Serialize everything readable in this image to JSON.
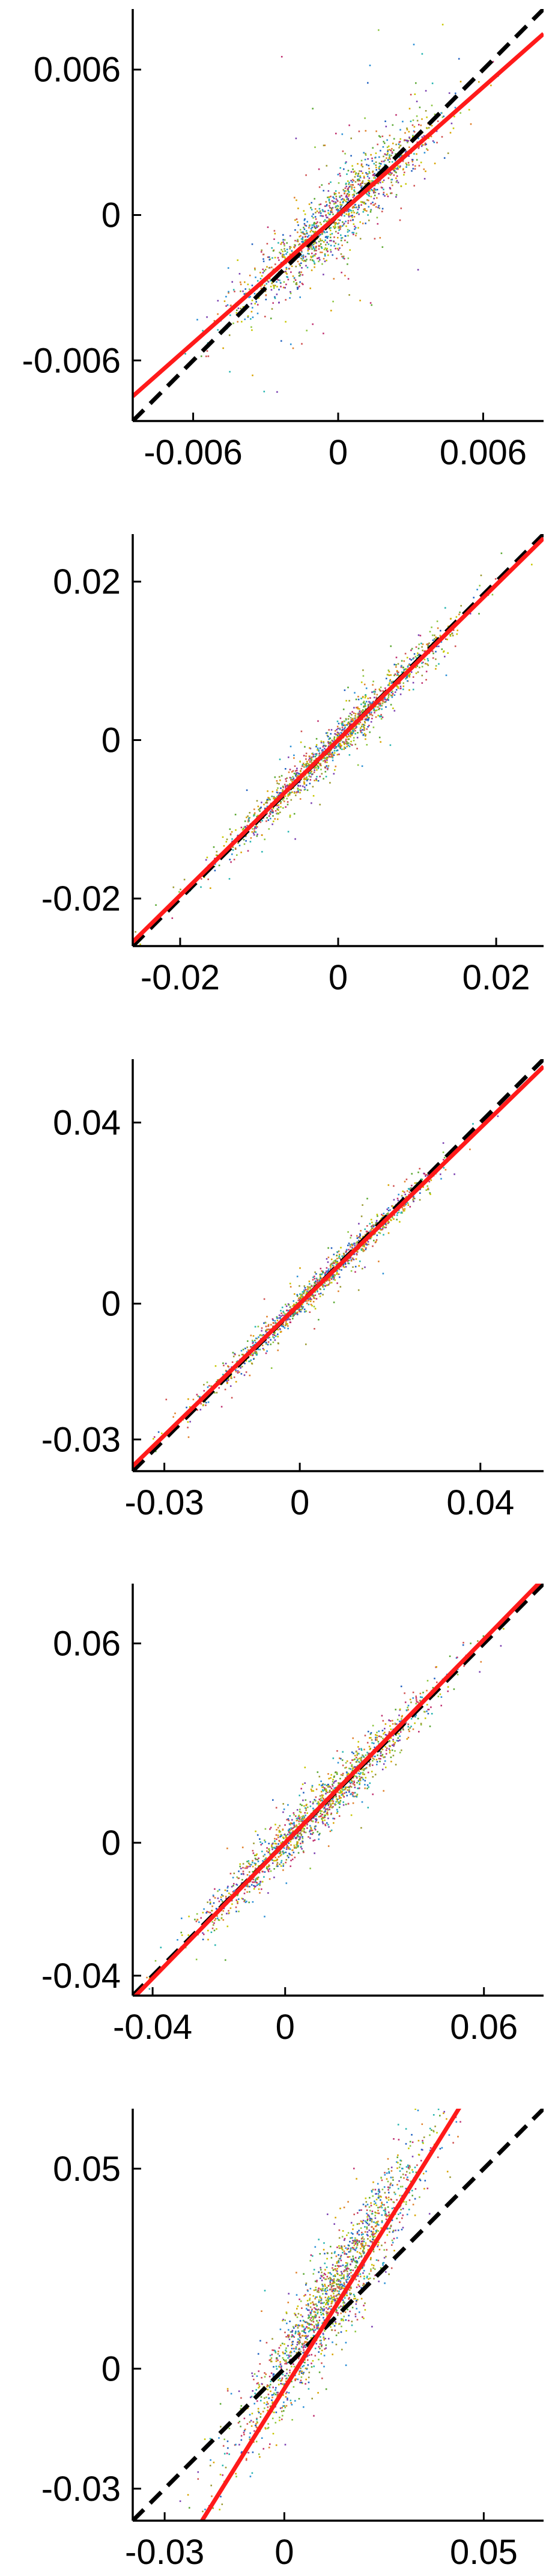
{
  "chart_data": [
    {
      "type": "scatter",
      "title": "",
      "xlabel": "",
      "ylabel": "",
      "xlim": [
        -0.0085,
        0.0085
      ],
      "ylim": [
        -0.0085,
        0.0085
      ],
      "xticks": [
        -0.006,
        0,
        0.006
      ],
      "yticks": [
        -0.006,
        0,
        0.006
      ],
      "xtick_labels": [
        "-0.006",
        "0",
        "0.006"
      ],
      "ytick_labels": [
        "-0.006",
        "0",
        "0.006"
      ],
      "grid": false,
      "reference_line": {
        "slope": 1,
        "intercept": 0,
        "color": "#000000",
        "style": "dashed"
      },
      "fit_line": {
        "slope": 0.88,
        "intercept": 0.0,
        "color": "#ff1a1a"
      },
      "scatter_cloud": {
        "slope": 0.9,
        "x_center": 0.0,
        "x_spread": 0.0022,
        "y_noise": 0.0007,
        "outlier_noise": 0.0022,
        "n_points": 1400
      }
    },
    {
      "type": "scatter",
      "title": "",
      "xlabel": "",
      "ylabel": "",
      "xlim": [
        -0.026,
        0.026
      ],
      "ylim": [
        -0.026,
        0.026
      ],
      "xticks": [
        -0.02,
        0,
        0.02
      ],
      "yticks": [
        -0.02,
        0,
        0.02
      ],
      "xtick_labels": [
        "-0.02",
        "0",
        "0.02"
      ],
      "ytick_labels": [
        "-0.02",
        "0",
        "0.02"
      ],
      "grid": false,
      "reference_line": {
        "slope": 1,
        "intercept": 0,
        "color": "#000000",
        "style": "dashed"
      },
      "fit_line": {
        "slope": 0.98,
        "intercept": 0.0,
        "color": "#ff1a1a"
      },
      "scatter_cloud": {
        "slope": 0.98,
        "x_center": 0.0,
        "x_spread": 0.0075,
        "y_noise": 0.0011,
        "outlier_noise": 0.0025,
        "n_points": 1400
      }
    },
    {
      "type": "scatter",
      "title": "",
      "xlabel": "",
      "ylabel": "",
      "xlim": [
        -0.037,
        0.054
      ],
      "ylim": [
        -0.037,
        0.054
      ],
      "xticks": [
        -0.03,
        0,
        0.04
      ],
      "yticks": [
        -0.03,
        0,
        0.04
      ],
      "xtick_labels": [
        "-0.03",
        "0",
        "0.04"
      ],
      "ytick_labels": [
        "-0.03",
        "0",
        "0.04"
      ],
      "grid": false,
      "reference_line": {
        "slope": 1,
        "intercept": 0,
        "color": "#000000",
        "style": "dashed"
      },
      "fit_line": {
        "slope": 0.97,
        "intercept": 0.0,
        "color": "#ff1a1a"
      },
      "scatter_cloud": {
        "slope": 0.98,
        "x_center": 0.004,
        "x_spread": 0.013,
        "y_noise": 0.0013,
        "outlier_noise": 0.004,
        "n_points": 1400
      }
    },
    {
      "type": "scatter",
      "title": "",
      "xlabel": "",
      "ylabel": "",
      "xlim": [
        -0.046,
        0.078
      ],
      "ylim": [
        -0.046,
        0.078
      ],
      "xticks": [
        -0.04,
        0,
        0.06
      ],
      "yticks": [
        -0.04,
        0,
        0.06
      ],
      "xtick_labels": [
        "-0.04",
        "0",
        "0.06"
      ],
      "ytick_labels": [
        "-0.04",
        "0",
        "0.06"
      ],
      "grid": false,
      "reference_line": {
        "slope": 1,
        "intercept": 0,
        "color": "#000000",
        "style": "dashed"
      },
      "fit_line": {
        "slope": 1.02,
        "intercept": 0.0,
        "color": "#ff1a1a"
      },
      "scatter_cloud": {
        "slope": 1.0,
        "x_center": 0.01,
        "x_spread": 0.018,
        "y_noise": 0.0035,
        "outlier_noise": 0.007,
        "n_points": 1500
      }
    },
    {
      "type": "scatter",
      "title": "",
      "xlabel": "",
      "ylabel": "",
      "xlim": [
        -0.038,
        0.065
      ],
      "ylim": [
        -0.038,
        0.065
      ],
      "xticks": [
        -0.03,
        0,
        0.05
      ],
      "yticks": [
        -0.03,
        0,
        0.05
      ],
      "xtick_labels": [
        "-0.03",
        "0",
        "0.05"
      ],
      "ytick_labels": [
        "-0.03",
        "0",
        "0.05"
      ],
      "grid": false,
      "reference_line": {
        "slope": 1,
        "intercept": 0,
        "color": "#000000",
        "style": "dashed"
      },
      "fit_line": {
        "slope": 1.6,
        "intercept": -0.005,
        "color": "#ff1a1a"
      },
      "scatter_cloud": {
        "slope": 1.5,
        "x_center": 0.012,
        "x_spread": 0.012,
        "y_noise": 0.006,
        "outlier_noise": 0.01,
        "n_points": 1800
      }
    }
  ],
  "palette": [
    "#c8c800",
    "#d9a400",
    "#8cc63f",
    "#5aa832",
    "#e0802a",
    "#2a8fd6",
    "#2060c0",
    "#7a3fb0",
    "#c03070",
    "#26b5b0",
    "#9a9a30",
    "#d05050"
  ]
}
